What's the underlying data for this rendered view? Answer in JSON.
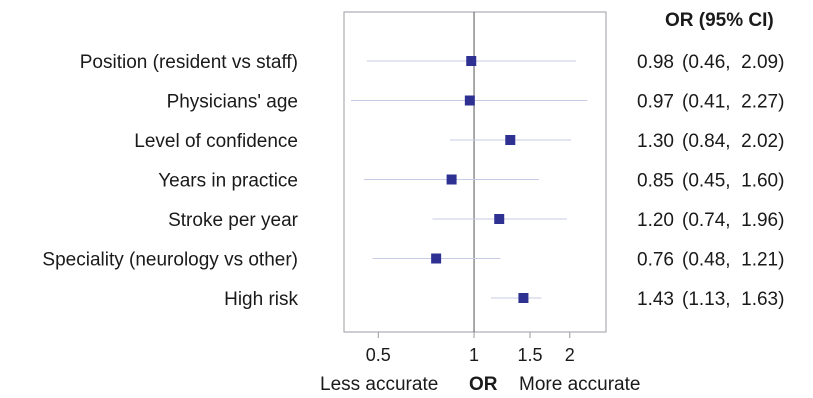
{
  "chart_data": {
    "type": "forest",
    "header": "OR (95% CI)",
    "x_axis": {
      "scale": "log",
      "ticks": [
        0.5,
        1,
        1.5,
        2
      ],
      "tick_labels": [
        "0.5",
        "1",
        "1.5",
        "2"
      ],
      "range": [
        0.39,
        2.6
      ],
      "reference_line": 1,
      "label": "OR",
      "left_note": "Less accurate",
      "right_note": "More accurate"
    },
    "marker_color": "#2e3192",
    "ci_color": "#c7cbe6",
    "rows": [
      {
        "label": "Position (resident vs staff)",
        "or": 0.98,
        "lo": 0.46,
        "hi": 2.09,
        "text_or": "0.98",
        "text_ci": "(0.46,  2.09)"
      },
      {
        "label": "Physicians' age",
        "or": 0.97,
        "lo": 0.41,
        "hi": 2.27,
        "text_or": "0.97",
        "text_ci": "(0.41,  2.27)"
      },
      {
        "label": "Level of confidence",
        "or": 1.3,
        "lo": 0.84,
        "hi": 2.02,
        "text_or": "1.30",
        "text_ci": "(0.84,  2.02)"
      },
      {
        "label": "Years in practice",
        "or": 0.85,
        "lo": 0.45,
        "hi": 1.6,
        "text_or": "0.85",
        "text_ci": "(0.45,  1.60)"
      },
      {
        "label": "Stroke per year",
        "or": 1.2,
        "lo": 0.74,
        "hi": 1.96,
        "text_or": "1.20",
        "text_ci": "(0.74,  1.96)"
      },
      {
        "label": "Speciality (neurology vs other)",
        "or": 0.76,
        "lo": 0.48,
        "hi": 1.21,
        "text_or": "0.76",
        "text_ci": "(0.48,  1.21)"
      },
      {
        "label": "High risk",
        "or": 1.43,
        "lo": 1.13,
        "hi": 1.63,
        "text_or": "1.43",
        "text_ci": "(1.13,  1.63)"
      }
    ]
  }
}
